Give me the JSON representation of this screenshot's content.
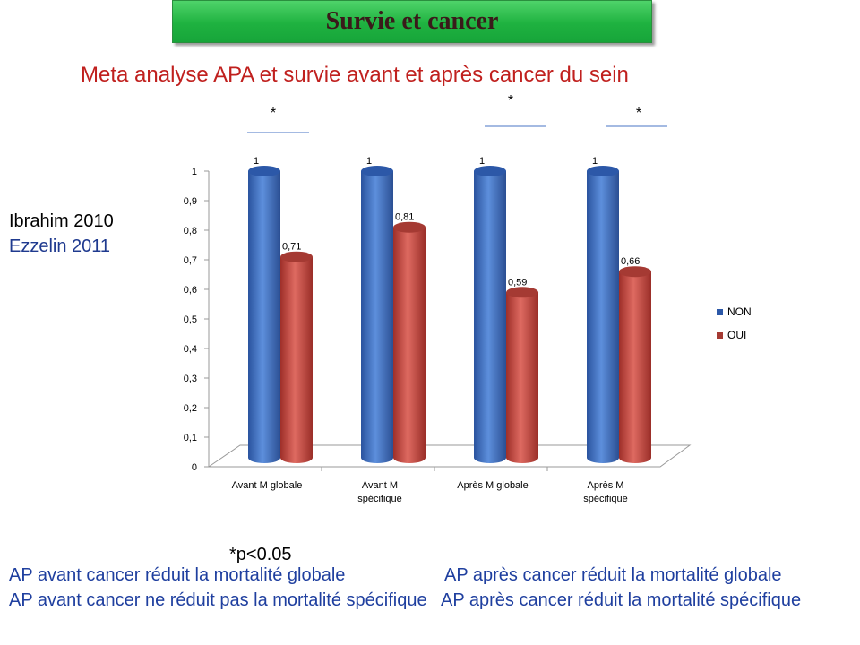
{
  "header": {
    "title": "Survie et cancer",
    "subtitle": "Meta analyse APA et survie avant et après cancer du sein"
  },
  "references": [
    "Ibrahim 2010",
    "Ezzelin 2011"
  ],
  "footnote": "*p<0.05",
  "conclusions": {
    "left": [
      "AP avant cancer réduit la mortalité globale",
      "AP avant cancer ne réduit pas la mortalité spécifique"
    ],
    "right": [
      "AP après cancer réduit la mortalité globale",
      "AP après cancer réduit la mortalité spécifique"
    ]
  },
  "colors": {
    "non": "#3e6fc4",
    "oui": "#c8473f",
    "title_bg": "#1fb240",
    "subtitle": "#c0201e",
    "conclusion": "#1f3f9f"
  },
  "chart_data": {
    "type": "bar",
    "categories": [
      [
        "Avant M globale"
      ],
      [
        "Avant M",
        "spécifique"
      ],
      [
        "Après M globale"
      ],
      [
        "Après M",
        "spécifique"
      ]
    ],
    "series": [
      {
        "name": "NON",
        "values": [
          1,
          1,
          1,
          1
        ]
      },
      {
        "name": "OUI",
        "values": [
          0.71,
          0.81,
          0.59,
          0.66
        ]
      }
    ],
    "data_labels": {
      "NON": [
        "1",
        "1",
        "1",
        "1"
      ],
      "OUI": [
        "0,71",
        "0,81",
        "0,59",
        "0,66"
      ]
    },
    "y_ticks": [
      "0",
      "0,1",
      "0,2",
      "0,3",
      "0,4",
      "0,5",
      "0,6",
      "0,7",
      "0,8",
      "0,9",
      "1"
    ],
    "ylim": [
      0,
      1
    ],
    "significance": [
      "*",
      "",
      "*",
      "*"
    ],
    "legend_position": "right",
    "grid": false,
    "style": "3d-cylinder"
  }
}
